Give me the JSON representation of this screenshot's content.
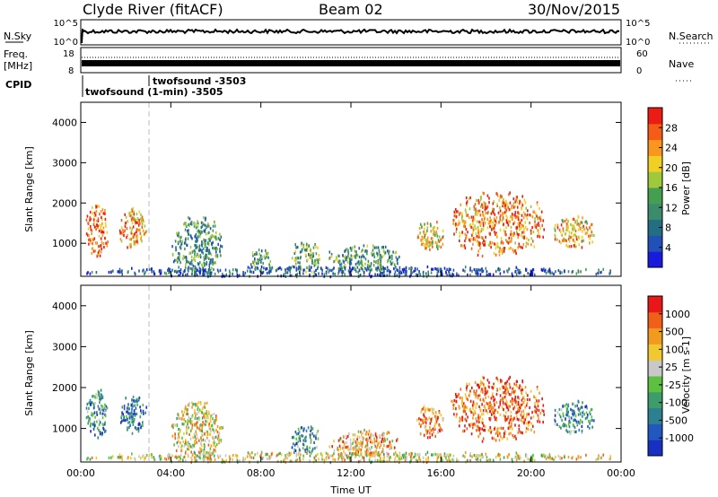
{
  "header": {
    "station": "Clyde River (fitACF)",
    "beam": "Beam 02",
    "date": "30/Nov/2015"
  },
  "small_panels": {
    "nsky_label": "N.Sky",
    "nsky_ticks": [
      "10^5",
      "10^0"
    ],
    "nsearch_label": "N.Search",
    "nsearch_ticks": [
      "10^5",
      "10^0"
    ],
    "freq_label_1": "Freq.",
    "freq_label_2": "[MHz]",
    "freq_ticks": [
      "18",
      "8"
    ],
    "nave_label": "Nave",
    "nave_ticks": [
      "60",
      "0"
    ],
    "cpid_label": "CPID",
    "cpid_1": "twofsound -3503",
    "cpid_2": "twofsound (1-min) -3505"
  },
  "chart_data": [
    {
      "type": "heatmap",
      "title": "",
      "xlabel": "Time UT",
      "ylabel": "Slant Range [km]",
      "xlim": [
        0,
        24
      ],
      "ylim": [
        180,
        4500
      ],
      "xticks": [
        "00:00",
        "04:00",
        "08:00",
        "12:00",
        "16:00",
        "20:00",
        "00:00"
      ],
      "yticks": [
        1000,
        2000,
        3000,
        4000
      ],
      "colorbar": {
        "label": "Power [dB]",
        "range": [
          0,
          32
        ],
        "ticks": [
          "4",
          "8",
          "12",
          "16",
          "20",
          "24",
          "28"
        ],
        "colors": [
          "#1a1adc",
          "#2050b8",
          "#246e84",
          "#3c8c6c",
          "#44a050",
          "#a0c83c",
          "#f0d024",
          "#f89620",
          "#f45c18",
          "#ea1c14"
        ]
      },
      "scatter_regions": [
        {
          "t0": 0.2,
          "t1": 1.2,
          "r0": 700,
          "r1": 2000,
          "level": 0.85
        },
        {
          "t0": 1.7,
          "t1": 2.9,
          "r0": 900,
          "r1": 1900,
          "level": 0.75
        },
        {
          "t0": 4.0,
          "t1": 6.3,
          "r0": 200,
          "r1": 1700,
          "level": 0.35
        },
        {
          "t0": 7.5,
          "t1": 8.5,
          "r0": 300,
          "r1": 900,
          "level": 0.4
        },
        {
          "t0": 9.3,
          "t1": 10.6,
          "r0": 300,
          "r1": 1100,
          "level": 0.45
        },
        {
          "t0": 11.0,
          "t1": 14.2,
          "r0": 300,
          "r1": 1000,
          "level": 0.4
        },
        {
          "t0": 14.9,
          "t1": 16.1,
          "r0": 800,
          "r1": 1600,
          "level": 0.65
        },
        {
          "t0": 16.4,
          "t1": 20.6,
          "r0": 700,
          "r1": 2300,
          "level": 0.8
        },
        {
          "t0": 21.0,
          "t1": 22.8,
          "r0": 900,
          "r1": 1700,
          "level": 0.7
        },
        {
          "t0": 0.0,
          "t1": 24.0,
          "r0": 200,
          "r1": 450,
          "level": 0.2
        }
      ]
    },
    {
      "type": "heatmap",
      "title": "",
      "xlabel": "Time UT",
      "ylabel": "Slant Range [km]",
      "xlim": [
        0,
        24
      ],
      "ylim": [
        180,
        4500
      ],
      "xticks": [
        "00:00",
        "04:00",
        "08:00",
        "12:00",
        "16:00",
        "20:00",
        "00:00"
      ],
      "yticks": [
        1000,
        2000,
        3000,
        4000
      ],
      "colorbar": {
        "label": "Velocity [m s-1]",
        "ticks": [
          "1000",
          "500",
          "100",
          "25",
          "-25",
          "-100",
          "-500",
          "-1000"
        ],
        "colors": [
          "#1830c0",
          "#2058c0",
          "#2c8090",
          "#3c9c6c",
          "#5cc040",
          "#c8c8c8",
          "#f0c830",
          "#f09a20",
          "#f06018",
          "#e81818"
        ]
      },
      "scatter_regions": [
        {
          "t0": 0.2,
          "t1": 1.2,
          "r0": 800,
          "r1": 2000,
          "level": 0.3
        },
        {
          "t0": 1.7,
          "t1": 2.9,
          "r0": 900,
          "r1": 1900,
          "level": 0.2
        },
        {
          "t0": 4.0,
          "t1": 6.3,
          "r0": 200,
          "r1": 1700,
          "level": 0.6
        },
        {
          "t0": 9.3,
          "t1": 10.6,
          "r0": 400,
          "r1": 1100,
          "level": 0.3
        },
        {
          "t0": 11.0,
          "t1": 14.2,
          "r0": 300,
          "r1": 1000,
          "level": 0.7
        },
        {
          "t0": 14.9,
          "t1": 16.1,
          "r0": 800,
          "r1": 1600,
          "level": 0.8
        },
        {
          "t0": 16.4,
          "t1": 20.6,
          "r0": 700,
          "r1": 2300,
          "level": 0.85
        },
        {
          "t0": 21.0,
          "t1": 22.8,
          "r0": 900,
          "r1": 1700,
          "level": 0.3
        },
        {
          "t0": 0.0,
          "t1": 24.0,
          "r0": 200,
          "r1": 450,
          "level": 0.6
        }
      ]
    }
  ]
}
